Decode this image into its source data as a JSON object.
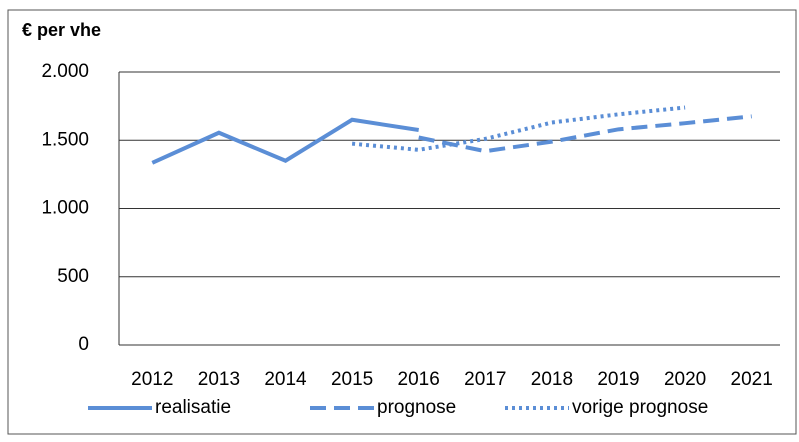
{
  "chart_data": {
    "type": "line",
    "title": "€ per vhe",
    "categories": [
      "2012",
      "2013",
      "2014",
      "2015",
      "2016",
      "2017",
      "2018",
      "2019",
      "2020",
      "2021"
    ],
    "series": [
      {
        "name": "realisatie",
        "color": "#5b8ed6",
        "dash": "solid",
        "values": [
          1335,
          1555,
          1350,
          1650,
          1575,
          null,
          null,
          null,
          null,
          null
        ]
      },
      {
        "name": "prognose",
        "color": "#5b8ed6",
        "dash": "dashed",
        "values": [
          null,
          null,
          null,
          null,
          1520,
          1420,
          1490,
          1580,
          1625,
          1675
        ]
      },
      {
        "name": "vorige prognose",
        "color": "#5b8ed6",
        "dash": "dotted",
        "values": [
          null,
          null,
          null,
          1475,
          1430,
          1510,
          1630,
          1690,
          1740,
          null
        ]
      }
    ],
    "ylim": [
      0,
      2000
    ],
    "yticks": [
      0,
      500,
      {
        "value": 1000,
        "label": "1.000"
      },
      {
        "value": 1500,
        "label": "1.500"
      },
      {
        "value": 2000,
        "label": "2.000"
      }
    ],
    "grid": true,
    "legend": "bottom"
  }
}
